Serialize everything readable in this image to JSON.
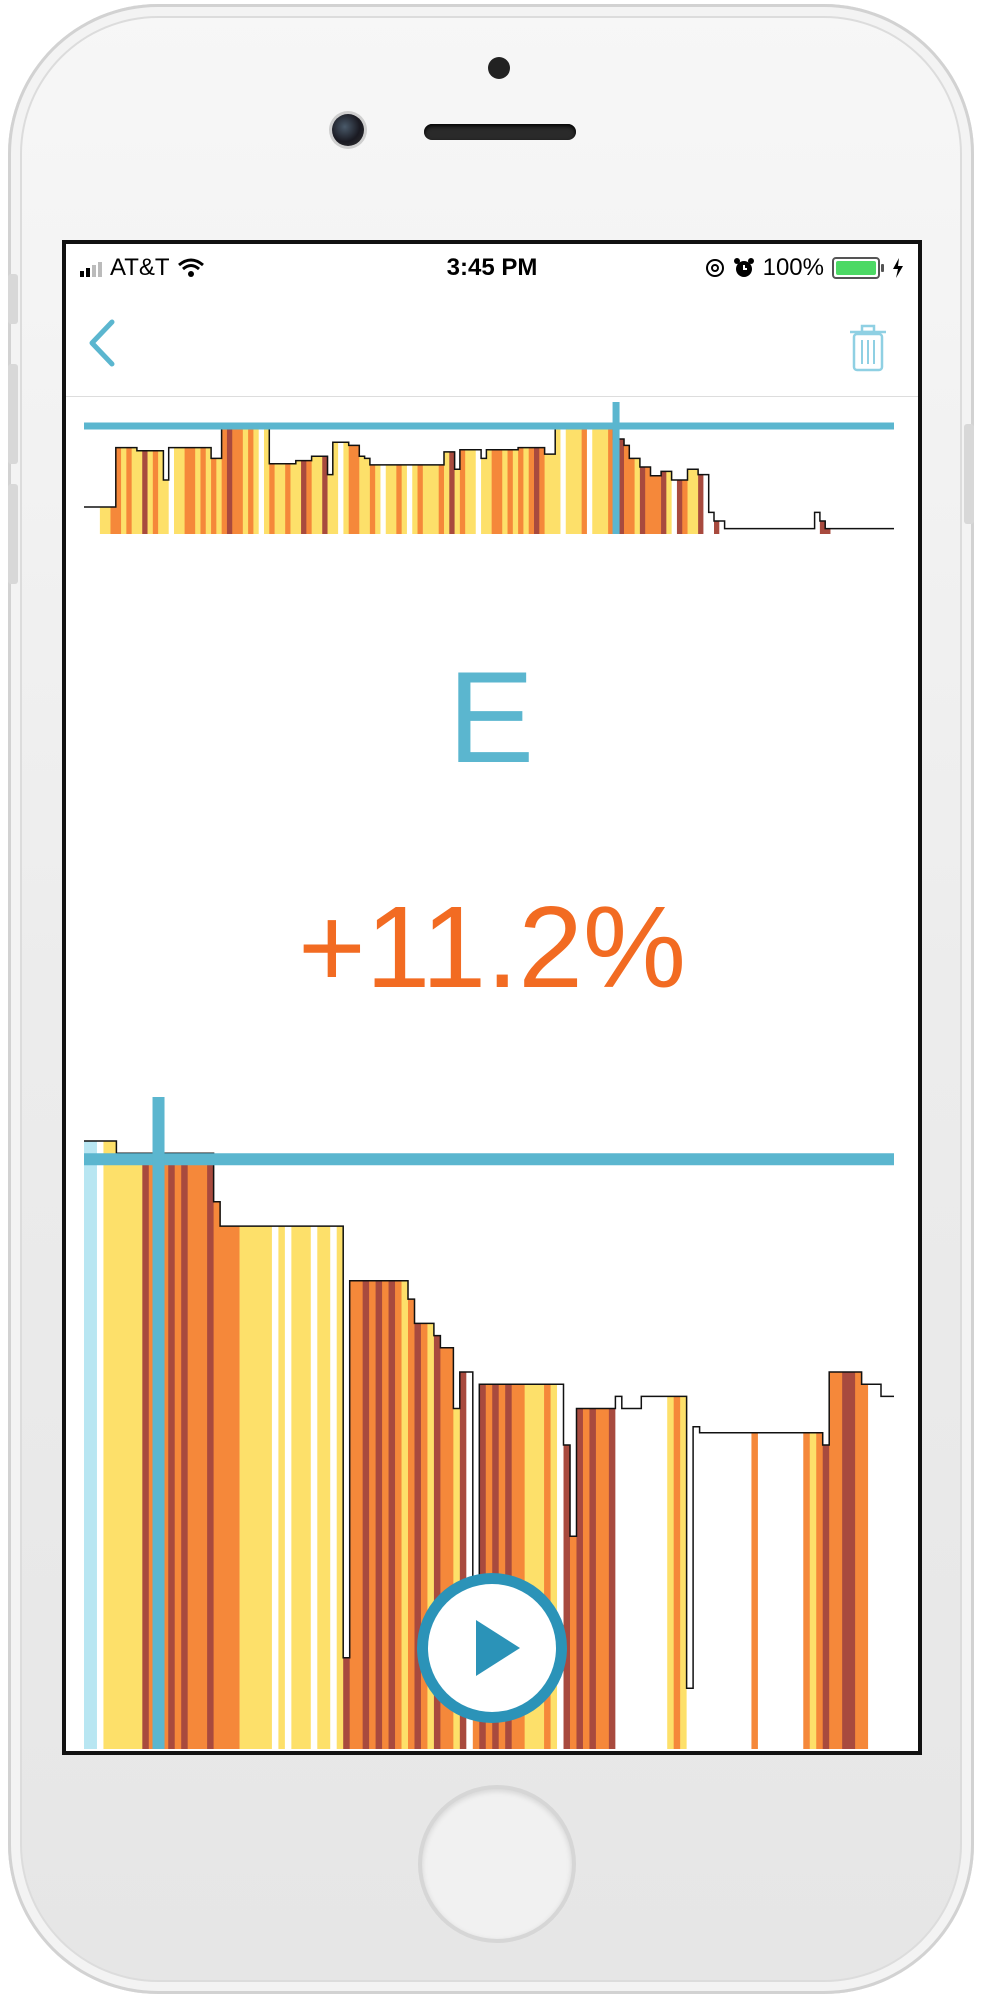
{
  "status_bar": {
    "carrier": "AT&T",
    "time": "3:45 PM",
    "battery": "100%",
    "battery_fraction": 1.0,
    "signal_bars": 2,
    "icons": [
      "signal-icon",
      "wifi-icon",
      "at-icon",
      "alarm-icon",
      "battery-icon",
      "charging-icon"
    ]
  },
  "nav": {
    "back_icon": "chevron-left-icon",
    "trash_icon": "trash-icon",
    "accent_color": "#5bb6cf"
  },
  "main": {
    "letter": "E",
    "change": "+11.2%",
    "letter_color": "#5bb6cf",
    "change_color": "#f26b22"
  },
  "colors": {
    "palette": [
      "#fde06a",
      "#f5883a",
      "#a84a3e",
      "#ffffff",
      "#b8e6f2"
    ],
    "marker": "#5bb6cf",
    "play": "#2b93b8"
  },
  "play_icon": "play-icon",
  "top_chart": {
    "type": "area-strips",
    "values": [
      0.25,
      0.25,
      0.25,
      0.25,
      0.25,
      0.25,
      0.8,
      0.8,
      0.8,
      0.8,
      0.77,
      0.77,
      0.77,
      0.77,
      0.77,
      0.5,
      0.8,
      0.8,
      0.8,
      0.8,
      0.8,
      0.8,
      0.8,
      0.8,
      0.7,
      0.7,
      1.0,
      1.0,
      1.0,
      1.0,
      1.0,
      1.0,
      1.0,
      1.0,
      1.0,
      0.65,
      0.65,
      0.65,
      0.65,
      0.65,
      0.68,
      0.68,
      0.68,
      0.72,
      0.72,
      0.72,
      0.55,
      0.85,
      0.85,
      0.85,
      0.82,
      0.82,
      0.72,
      0.7,
      0.64,
      0.64,
      0.64,
      0.64,
      0.64,
      0.64,
      0.64,
      0.64,
      0.64,
      0.64,
      0.64,
      0.64,
      0.64,
      0.64,
      0.76,
      0.76,
      0.6,
      0.78,
      0.78,
      0.78,
      0.78,
      0.7,
      0.78,
      0.78,
      0.78,
      0.78,
      0.78,
      0.78,
      0.8,
      0.8,
      0.8,
      0.8,
      0.8,
      0.74,
      0.74,
      1.0,
      1.0,
      1.0,
      1.0,
      1.0,
      1.0,
      1.0,
      0.98,
      0.98,
      0.98,
      0.98,
      0.88,
      0.88,
      0.82,
      0.7,
      0.7,
      0.62,
      0.62,
      0.54,
      0.54,
      0.58,
      0.58,
      0.5,
      0.5,
      0.5,
      0.6,
      0.6,
      0.55,
      0.55,
      0.2,
      0.12,
      0.12,
      0.05,
      0.05,
      0.05,
      0.05,
      0.05,
      0.05,
      0.05,
      0.05,
      0.05,
      0.05,
      0.05,
      0.05,
      0.05,
      0.05,
      0.05,
      0.05,
      0.05,
      0.2,
      0.12,
      0.05,
      0.05,
      0.05,
      0.05,
      0.05,
      0.05,
      0.05,
      0.05,
      0.05,
      0.05,
      0.05,
      0.05,
      0.05
    ],
    "strip_colors": [
      3,
      3,
      3,
      0,
      0,
      1,
      1,
      0,
      1,
      0,
      0,
      2,
      0,
      1,
      0,
      0,
      3,
      0,
      0,
      1,
      1,
      0,
      1,
      0,
      1,
      0,
      1,
      2,
      1,
      1,
      0,
      1,
      0,
      3,
      0,
      1,
      0,
      0,
      1,
      0,
      0,
      2,
      1,
      0,
      0,
      2,
      0,
      0,
      3,
      0,
      1,
      1,
      0,
      0,
      1,
      0,
      3,
      0,
      0,
      1,
      0,
      3,
      0,
      1,
      0,
      0,
      0,
      1,
      0,
      2,
      0,
      1,
      0,
      0,
      3,
      0,
      0,
      1,
      1,
      0,
      1,
      0,
      1,
      0,
      1,
      2,
      1,
      0,
      0,
      0,
      3,
      0,
      0,
      0,
      1,
      3,
      0,
      0,
      0,
      1,
      1,
      2,
      1,
      1,
      0,
      2,
      1,
      1,
      1,
      2,
      0,
      3,
      2,
      1,
      0,
      0,
      2,
      3,
      3,
      2,
      3,
      3,
      3,
      3,
      3,
      3,
      3,
      3,
      3,
      3,
      3,
      3,
      3,
      3,
      3,
      3,
      3,
      3,
      3,
      2,
      2,
      3,
      3,
      3,
      3,
      3,
      3,
      3,
      3,
      3,
      3,
      3,
      3,
      3,
      3
    ],
    "marker_index": 100,
    "reference_level": 1.0
  },
  "bottom_chart": {
    "type": "area-strips",
    "values": [
      1.0,
      1.0,
      1.0,
      1.0,
      1.0,
      0.98,
      0.98,
      0.98,
      0.98,
      0.98,
      0.98,
      0.98,
      0.98,
      0.98,
      0.98,
      0.98,
      0.98,
      0.98,
      0.98,
      0.98,
      0.9,
      0.86,
      0.86,
      0.86,
      0.86,
      0.86,
      0.86,
      0.86,
      0.86,
      0.86,
      0.86,
      0.86,
      0.86,
      0.86,
      0.86,
      0.86,
      0.86,
      0.86,
      0.86,
      0.86,
      0.15,
      0.77,
      0.77,
      0.77,
      0.77,
      0.77,
      0.77,
      0.77,
      0.77,
      0.77,
      0.74,
      0.7,
      0.7,
      0.7,
      0.68,
      0.66,
      0.66,
      0.56,
      0.62,
      0.62,
      0.15,
      0.6,
      0.6,
      0.6,
      0.6,
      0.6,
      0.6,
      0.6,
      0.6,
      0.6,
      0.6,
      0.6,
      0.6,
      0.6,
      0.5,
      0.35,
      0.56,
      0.56,
      0.56,
      0.56,
      0.56,
      0.56,
      0.58,
      0.56,
      0.56,
      0.56,
      0.58,
      0.58,
      0.58,
      0.58,
      0.58,
      0.58,
      0.58,
      0.1,
      0.53,
      0.52,
      0.52,
      0.52,
      0.52,
      0.52,
      0.52,
      0.52,
      0.52,
      0.52,
      0.52,
      0.52,
      0.52,
      0.52,
      0.52,
      0.52,
      0.52,
      0.52,
      0.52,
      0.52,
      0.5,
      0.62,
      0.62,
      0.62,
      0.62,
      0.62,
      0.6,
      0.6,
      0.6,
      0.58,
      0.58
    ],
    "strip_colors": [
      4,
      4,
      3,
      0,
      0,
      0,
      0,
      0,
      0,
      2,
      1,
      2,
      1,
      2,
      1,
      2,
      1,
      1,
      1,
      2,
      1,
      1,
      1,
      1,
      0,
      0,
      0,
      0,
      0,
      3,
      0,
      3,
      0,
      0,
      0,
      3,
      0,
      0,
      3,
      0,
      2,
      1,
      1,
      2,
      1,
      2,
      1,
      2,
      1,
      0,
      1,
      2,
      1,
      0,
      2,
      1,
      1,
      0,
      2,
      3,
      1,
      2,
      1,
      2,
      1,
      2,
      1,
      1,
      0,
      0,
      0,
      1,
      0,
      3,
      2,
      1,
      2,
      1,
      2,
      1,
      1,
      2,
      3,
      3,
      3,
      3,
      3,
      3,
      3,
      3,
      0,
      1,
      0,
      3,
      3,
      3,
      3,
      3,
      3,
      3,
      3,
      3,
      3,
      1,
      3,
      3,
      3,
      3,
      3,
      3,
      3,
      1,
      0,
      1,
      2,
      1,
      1,
      2,
      2,
      1,
      1
    ],
    "marker_index": 11,
    "reference_level": 0.97
  }
}
